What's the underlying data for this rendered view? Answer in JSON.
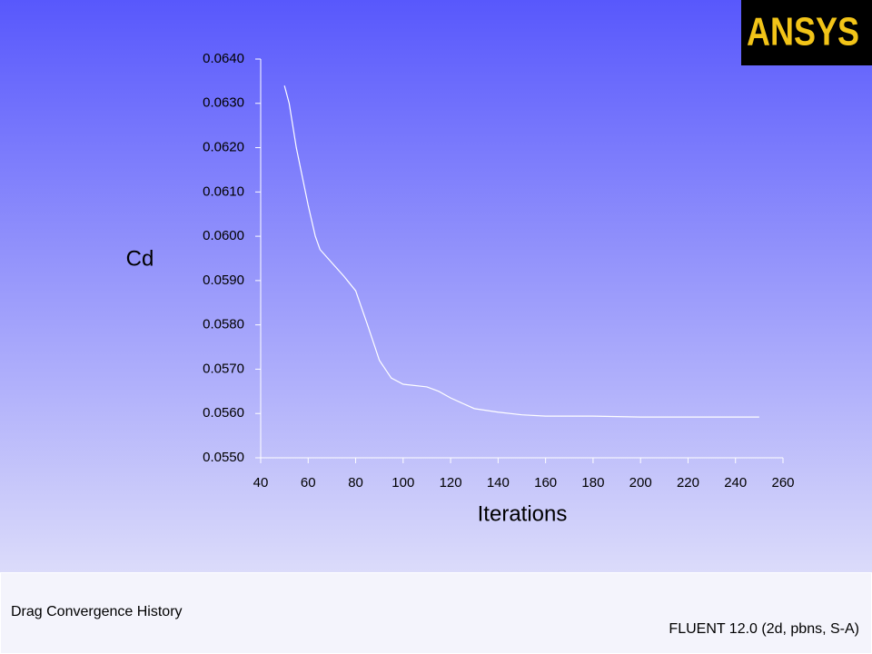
{
  "chart_data": {
    "type": "line",
    "logo": "ANSYS",
    "title": "Drag Convergence History",
    "footer": "FLUENT 12.0 (2d, pbns, S-A)",
    "x_label": "Iterations",
    "y_label": "Cd",
    "x": [
      50,
      52,
      55,
      60,
      63,
      65,
      70,
      75,
      80,
      85,
      90,
      95,
      100,
      110,
      115,
      120,
      130,
      140,
      150,
      160,
      180,
      200,
      250
    ],
    "series": [
      {
        "color": "#ffffff",
        "values": [
          0.0634,
          0.063,
          0.062,
          0.0607,
          0.06,
          0.0597,
          0.0594,
          0.0591,
          0.05877,
          0.058,
          0.0572,
          0.0568,
          0.05666,
          0.0566,
          0.0565,
          0.05635,
          0.05611,
          0.05603,
          0.05597,
          0.05594,
          0.05594,
          0.05592,
          0.05592
        ]
      }
    ],
    "xlim": [
      40,
      260
    ],
    "xticks": [
      40,
      60,
      80,
      100,
      120,
      140,
      160,
      180,
      200,
      220,
      240,
      260
    ],
    "ylim": [
      0.055,
      0.064
    ],
    "yticks": [
      {
        "value": 0.055,
        "label": "0.0550"
      },
      {
        "value": 0.056,
        "label": "0.0560"
      },
      {
        "value": 0.057,
        "label": "0.0570"
      },
      {
        "value": 0.058,
        "label": "0.0580"
      },
      {
        "value": 0.059,
        "label": "0.0590"
      },
      {
        "value": 0.06,
        "label": "0.0600"
      },
      {
        "value": 0.061,
        "label": "0.0610"
      },
      {
        "value": 0.062,
        "label": "0.0620"
      },
      {
        "value": 0.063,
        "label": "0.0630"
      },
      {
        "value": 0.064,
        "label": "0.0640"
      }
    ],
    "grid": false
  }
}
